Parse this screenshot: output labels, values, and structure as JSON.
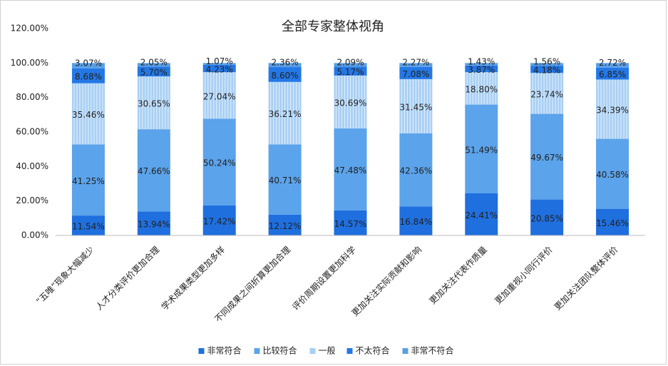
{
  "chart_data": {
    "type": "stacked_bar",
    "title": "全部专家整体视角",
    "categories": [
      "“五唯”现象大幅减少",
      "人才分类评价更加合理",
      "学术成果类型更加多样",
      "不同成果之间折算更加合理",
      "评价周期设置更加科学",
      "更加关注实际贡献和影响",
      "更加关注代表作质量",
      "更加重视小同行评价",
      "更加关注团队整体评价"
    ],
    "series": [
      {
        "name": "非常符合",
        "color": "#1f6fdf",
        "values": [
          11.54,
          13.94,
          17.42,
          12.12,
          14.57,
          16.84,
          24.41,
          20.85,
          15.46
        ],
        "value_labels": [
          "11.54%",
          "13.94%",
          "17.42%",
          "12.12%",
          "14.57%",
          "16.84%",
          "24.41%",
          "20.85%",
          "15.46%"
        ]
      },
      {
        "name": "比较符合",
        "color": "#5ba3ea",
        "values": [
          41.25,
          47.66,
          50.24,
          40.71,
          47.48,
          42.36,
          51.49,
          49.67,
          40.58
        ],
        "value_labels": [
          "41.25%",
          "47.66%",
          "50.24%",
          "40.71%",
          "47.48%",
          "42.36%",
          "51.49%",
          "49.67%",
          "40.58%"
        ]
      },
      {
        "name": "一般",
        "color": "#a8cff4",
        "values": [
          35.46,
          30.65,
          27.04,
          36.21,
          30.69,
          31.45,
          18.8,
          23.74,
          34.39
        ],
        "value_labels": [
          "35.46%",
          "30.65%",
          "27.04%",
          "36.21%",
          "30.69%",
          "31.45%",
          "18.80%",
          "23.74%",
          "34.39%"
        ]
      },
      {
        "name": "不太符合",
        "color": "#2478e6",
        "values": [
          8.68,
          5.7,
          4.23,
          8.6,
          5.17,
          7.08,
          3.87,
          4.18,
          6.85
        ],
        "value_labels": [
          "8.68%",
          "5.70%",
          "4.23%",
          "8.60%",
          "5.17%",
          "7.08%",
          "3.87%",
          "4.18%",
          "6.85%"
        ]
      },
      {
        "name": "非常不符合",
        "color": "#5a9fe6",
        "values": [
          3.07,
          2.05,
          1.07,
          2.36,
          2.09,
          2.27,
          1.43,
          1.56,
          2.72
        ],
        "value_labels": [
          "3.07%",
          "2.05%",
          "1.07%",
          "2.36%",
          "2.09%",
          "2.27%",
          "1.43%",
          "1.56%",
          "2.72%"
        ]
      }
    ],
    "ylim": [
      0,
      120
    ],
    "yticks": [
      {
        "value": 0,
        "label": "0.00%"
      },
      {
        "value": 20,
        "label": "20.00%"
      },
      {
        "value": 40,
        "label": "40.00%"
      },
      {
        "value": 60,
        "label": "60.00%"
      },
      {
        "value": 80,
        "label": "80.00%"
      },
      {
        "value": 100,
        "label": "100.00%"
      },
      {
        "value": 120,
        "label": "120.00%"
      }
    ],
    "grid": false,
    "legend": "bottom"
  }
}
